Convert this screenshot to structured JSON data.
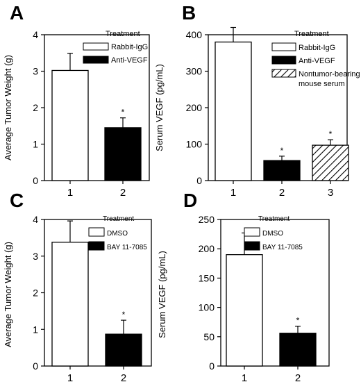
{
  "chart_data": [
    {
      "panel_letter": "A",
      "type": "bar",
      "ylabel": "Average Tumor Weight (g)",
      "ylim": [
        0,
        4
      ],
      "yticks": [
        0,
        1,
        2,
        3,
        4
      ],
      "categories": [
        "1",
        "2"
      ],
      "values": [
        3.02,
        1.45
      ],
      "errors": [
        0.47,
        0.27
      ],
      "significance": [
        "",
        "*"
      ],
      "fills": [
        "white",
        "black"
      ],
      "legend_title": "Treatment",
      "legend": [
        {
          "label": "Rabbit-IgG",
          "fill": "white"
        },
        {
          "label": "Anti-VEGF",
          "fill": "black"
        }
      ]
    },
    {
      "panel_letter": "B",
      "type": "bar",
      "ylabel": "Serum VEGF (pg/mL)",
      "ylim": [
        0,
        400
      ],
      "yticks": [
        0,
        100,
        200,
        300,
        400
      ],
      "categories": [
        "1",
        "2",
        "3"
      ],
      "values": [
        380,
        55,
        97
      ],
      "errors": [
        40,
        12,
        15
      ],
      "significance": [
        "",
        "*",
        "*"
      ],
      "fills": [
        "white",
        "black",
        "hatch"
      ],
      "legend_title": "Treatment",
      "legend": [
        {
          "label": "Rabbit-IgG",
          "fill": "white"
        },
        {
          "label": "Anti-VEGF",
          "fill": "black"
        },
        {
          "label": "Nontumor-bearing",
          "label2": "mouse serum",
          "fill": "hatch"
        }
      ]
    },
    {
      "panel_letter": "C",
      "type": "bar",
      "ylabel": "Average Tumor Weight (g)",
      "ylim": [
        0,
        4
      ],
      "yticks": [
        0,
        1,
        2,
        3,
        4
      ],
      "categories": [
        "1",
        "2"
      ],
      "values": [
        3.38,
        0.87
      ],
      "errors": [
        0.58,
        0.38
      ],
      "significance": [
        "",
        "*"
      ],
      "fills": [
        "white",
        "black"
      ],
      "legend_title": "Treatment",
      "legend": [
        {
          "label": "DMSO",
          "fill": "white"
        },
        {
          "label": "BAY 11-7085",
          "fill": "black"
        }
      ]
    },
    {
      "panel_letter": "D",
      "type": "bar",
      "ylabel": "Serum VEGF (pg/mL)",
      "ylim": [
        0,
        250
      ],
      "yticks": [
        0,
        50,
        100,
        150,
        200,
        250
      ],
      "categories": [
        "1",
        "2"
      ],
      "values": [
        190,
        56
      ],
      "errors": [
        37,
        12
      ],
      "significance": [
        "",
        "*"
      ],
      "fills": [
        "white",
        "black"
      ],
      "legend_title": "Treatment",
      "legend": [
        {
          "label": "DMSO",
          "fill": "white"
        },
        {
          "label": "BAY 11-7085",
          "fill": "black"
        }
      ]
    }
  ]
}
